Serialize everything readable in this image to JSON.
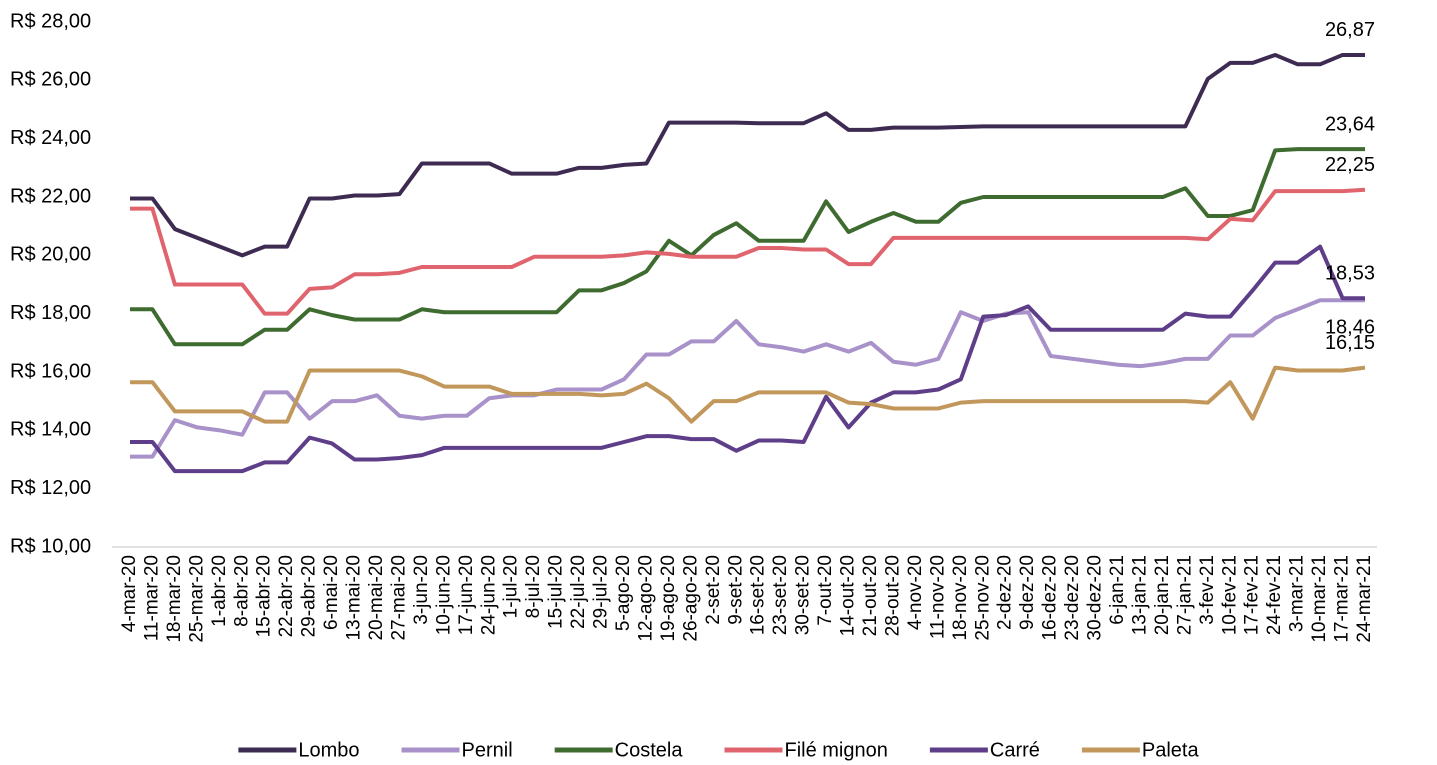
{
  "chart_data": {
    "type": "line",
    "categories": [
      "4-mar-20",
      "11-mar-20",
      "18-mar-20",
      "25-mar-20",
      "1-abr-20",
      "8-abr-20",
      "15-abr-20",
      "22-abr-20",
      "29-abr-20",
      "6-mai-20",
      "13-mai-20",
      "20-mai-20",
      "27-mai-20",
      "3-jun-20",
      "10-jun-20",
      "17-jun-20",
      "24-jun-20",
      "1-jul-20",
      "8-jul-20",
      "15-jul-20",
      "22-jul-20",
      "29-jul-20",
      "5-ago-20",
      "12-ago-20",
      "19-ago-20",
      "26-ago-20",
      "2-set-20",
      "9-set-20",
      "16-set-20",
      "23-set-20",
      "30-set-20",
      "7-out-20",
      "14-out-20",
      "21-out-20",
      "28-out-20",
      "4-nov-20",
      "11-nov-20",
      "18-nov-20",
      "25-nov-20",
      "2-dez-20",
      "9-dez-20",
      "16-dez-20",
      "23-dez-20",
      "30-dez-20",
      "6-jan-21",
      "13-jan-21",
      "20-jan-21",
      "27-jan-21",
      "3-fev-21",
      "10-fev-21",
      "17-fev-21",
      "24-fev-21",
      "3-mar-21",
      "10-mar-21",
      "17-mar-21",
      "24-mar-21"
    ],
    "ylim": [
      10,
      28
    ],
    "yticks": [
      {
        "value": 10,
        "label": "R$ 10,00"
      },
      {
        "value": 12,
        "label": "R$ 12,00"
      },
      {
        "value": 14,
        "label": "R$ 14,00"
      },
      {
        "value": 16,
        "label": "R$ 16,00"
      },
      {
        "value": 18,
        "label": "R$ 18,00"
      },
      {
        "value": 20,
        "label": "R$ 20,00"
      },
      {
        "value": 22,
        "label": "R$ 22,00"
      },
      {
        "value": 24,
        "label": "R$ 24,00"
      },
      {
        "value": 26,
        "label": "R$ 26,00"
      },
      {
        "value": 28,
        "label": "R$ 28,00"
      }
    ],
    "grid": false,
    "legend": "bottom",
    "series": [
      {
        "name": "Lombo",
        "color": "#3e2b52",
        "values": [
          21.95,
          21.95,
          20.9,
          20.6,
          20.3,
          20.0,
          20.3,
          20.3,
          21.95,
          21.95,
          22.05,
          22.05,
          22.1,
          23.15,
          23.15,
          23.15,
          23.15,
          22.8,
          22.8,
          22.8,
          23.0,
          23.0,
          23.1,
          23.15,
          24.55,
          24.55,
          24.55,
          24.55,
          24.53,
          24.53,
          24.53,
          24.87,
          24.3,
          24.3,
          24.38,
          24.38,
          24.38,
          24.4,
          24.42,
          24.42,
          24.42,
          24.42,
          24.42,
          24.42,
          24.42,
          24.42,
          24.42,
          24.42,
          26.05,
          26.6,
          26.6,
          26.87,
          26.55,
          26.55,
          26.87,
          26.87
        ],
        "value_labels": [
          null,
          null,
          null,
          null,
          null,
          null,
          null,
          null,
          null,
          null,
          null,
          null,
          null,
          null,
          null,
          null,
          null,
          null,
          null,
          null,
          null,
          null,
          null,
          null,
          null,
          null,
          null,
          null,
          null,
          null,
          null,
          null,
          null,
          null,
          null,
          null,
          null,
          null,
          null,
          null,
          null,
          null,
          null,
          null,
          null,
          null,
          null,
          null,
          null,
          null,
          null,
          null,
          null,
          null,
          null,
          "26,87"
        ]
      },
      {
        "name": "Pernil",
        "color": "#a892c9",
        "values": [
          13.1,
          13.1,
          14.35,
          14.1,
          14.0,
          13.85,
          15.3,
          15.3,
          14.4,
          15.0,
          15.0,
          15.2,
          14.5,
          14.4,
          14.5,
          14.5,
          15.1,
          15.2,
          15.2,
          15.4,
          15.4,
          15.4,
          15.75,
          16.6,
          16.6,
          17.05,
          17.05,
          17.75,
          16.95,
          16.85,
          16.7,
          16.95,
          16.7,
          17.0,
          16.35,
          16.25,
          16.45,
          18.05,
          17.75,
          18.0,
          18.05,
          16.55,
          16.45,
          16.35,
          16.25,
          16.2,
          16.3,
          16.45,
          16.45,
          17.25,
          17.25,
          17.85,
          18.15,
          18.46,
          18.46,
          18.46
        ],
        "value_labels": [
          null,
          null,
          null,
          null,
          null,
          null,
          null,
          null,
          null,
          null,
          null,
          null,
          null,
          null,
          null,
          null,
          null,
          null,
          null,
          null,
          null,
          null,
          null,
          null,
          null,
          null,
          null,
          null,
          null,
          null,
          null,
          null,
          null,
          null,
          null,
          null,
          null,
          null,
          null,
          null,
          null,
          null,
          null,
          null,
          null,
          null,
          null,
          null,
          null,
          null,
          null,
          null,
          null,
          null,
          null,
          "18,46"
        ]
      },
      {
        "name": "Costela",
        "color": "#3e6b2f",
        "values": [
          18.15,
          18.15,
          16.95,
          16.95,
          16.95,
          16.95,
          17.45,
          17.45,
          18.15,
          17.95,
          17.8,
          17.8,
          17.8,
          18.15,
          18.05,
          18.05,
          18.05,
          18.05,
          18.05,
          18.05,
          18.8,
          18.8,
          19.05,
          19.45,
          20.5,
          20.0,
          20.7,
          21.1,
          20.5,
          20.5,
          20.5,
          21.85,
          20.8,
          21.15,
          21.45,
          21.15,
          21.15,
          21.8,
          22.0,
          22.0,
          22.0,
          22.0,
          22.0,
          22.0,
          22.0,
          22.0,
          22.0,
          22.3,
          21.35,
          21.35,
          21.55,
          23.6,
          23.64,
          23.64,
          23.64,
          23.64
        ],
        "value_labels": [
          null,
          null,
          null,
          null,
          null,
          null,
          null,
          null,
          null,
          null,
          null,
          null,
          null,
          null,
          null,
          null,
          null,
          null,
          null,
          null,
          null,
          null,
          null,
          null,
          null,
          null,
          null,
          null,
          null,
          null,
          null,
          null,
          null,
          null,
          null,
          null,
          null,
          null,
          null,
          null,
          null,
          null,
          null,
          null,
          null,
          null,
          null,
          null,
          null,
          null,
          null,
          null,
          null,
          null,
          null,
          "23,64"
        ]
      },
      {
        "name": "Filé mignon",
        "color": "#e0646e",
        "values": [
          21.6,
          21.6,
          19.0,
          19.0,
          19.0,
          19.0,
          18.0,
          18.0,
          18.85,
          18.9,
          19.35,
          19.35,
          19.4,
          19.6,
          19.6,
          19.6,
          19.6,
          19.6,
          19.95,
          19.95,
          19.95,
          19.95,
          20.0,
          20.1,
          20.05,
          19.95,
          19.95,
          19.95,
          20.25,
          20.25,
          20.2,
          20.2,
          19.7,
          19.7,
          20.6,
          20.6,
          20.6,
          20.6,
          20.6,
          20.6,
          20.6,
          20.6,
          20.6,
          20.6,
          20.6,
          20.6,
          20.6,
          20.6,
          20.55,
          21.25,
          21.2,
          22.2,
          22.2,
          22.2,
          22.2,
          22.25
        ],
        "value_labels": [
          null,
          null,
          null,
          null,
          null,
          null,
          null,
          null,
          null,
          null,
          null,
          null,
          null,
          null,
          null,
          null,
          null,
          null,
          null,
          null,
          null,
          null,
          null,
          null,
          null,
          null,
          null,
          null,
          null,
          null,
          null,
          null,
          null,
          null,
          null,
          null,
          null,
          null,
          null,
          null,
          null,
          null,
          null,
          null,
          null,
          null,
          null,
          null,
          null,
          null,
          null,
          null,
          null,
          null,
          null,
          "22,25"
        ]
      },
      {
        "name": "Carré",
        "color": "#5f3e89",
        "values": [
          13.6,
          13.6,
          12.6,
          12.6,
          12.6,
          12.6,
          12.9,
          12.9,
          13.75,
          13.55,
          13.0,
          13.0,
          13.05,
          13.15,
          13.4,
          13.4,
          13.4,
          13.4,
          13.4,
          13.4,
          13.4,
          13.4,
          13.6,
          13.8,
          13.8,
          13.7,
          13.7,
          13.3,
          13.65,
          13.65,
          13.6,
          15.15,
          14.1,
          14.95,
          15.3,
          15.3,
          15.4,
          15.75,
          17.9,
          17.95,
          18.25,
          17.45,
          17.45,
          17.45,
          17.45,
          17.45,
          17.45,
          18.0,
          17.9,
          17.9,
          18.8,
          19.75,
          19.75,
          20.3,
          18.53,
          18.53
        ],
        "value_labels": [
          null,
          null,
          null,
          null,
          null,
          null,
          null,
          null,
          null,
          null,
          null,
          null,
          null,
          null,
          null,
          null,
          null,
          null,
          null,
          null,
          null,
          null,
          null,
          null,
          null,
          null,
          null,
          null,
          null,
          null,
          null,
          null,
          null,
          null,
          null,
          null,
          null,
          null,
          null,
          null,
          null,
          null,
          null,
          null,
          null,
          null,
          null,
          null,
          null,
          null,
          null,
          null,
          null,
          null,
          null,
          "18,53"
        ]
      },
      {
        "name": "Paleta",
        "color": "#c1975b",
        "values": [
          15.65,
          15.65,
          14.65,
          14.65,
          14.65,
          14.65,
          14.3,
          14.3,
          16.05,
          16.05,
          16.05,
          16.05,
          16.05,
          15.85,
          15.5,
          15.5,
          15.5,
          15.25,
          15.25,
          15.25,
          15.25,
          15.2,
          15.25,
          15.6,
          15.1,
          14.3,
          15.0,
          15.0,
          15.3,
          15.3,
          15.3,
          15.3,
          14.95,
          14.9,
          14.75,
          14.75,
          14.75,
          14.95,
          15.0,
          15.0,
          15.0,
          15.0,
          15.0,
          15.0,
          15.0,
          15.0,
          15.0,
          15.0,
          14.95,
          15.65,
          14.4,
          16.15,
          16.05,
          16.05,
          16.05,
          16.15
        ],
        "value_labels": [
          null,
          null,
          null,
          null,
          null,
          null,
          null,
          null,
          null,
          null,
          null,
          null,
          null,
          null,
          null,
          null,
          null,
          null,
          null,
          null,
          null,
          null,
          null,
          null,
          null,
          null,
          null,
          null,
          null,
          null,
          null,
          null,
          null,
          null,
          null,
          null,
          null,
          null,
          null,
          null,
          null,
          null,
          null,
          null,
          null,
          null,
          null,
          null,
          null,
          null,
          null,
          null,
          null,
          null,
          null,
          "16,15"
        ]
      }
    ]
  }
}
